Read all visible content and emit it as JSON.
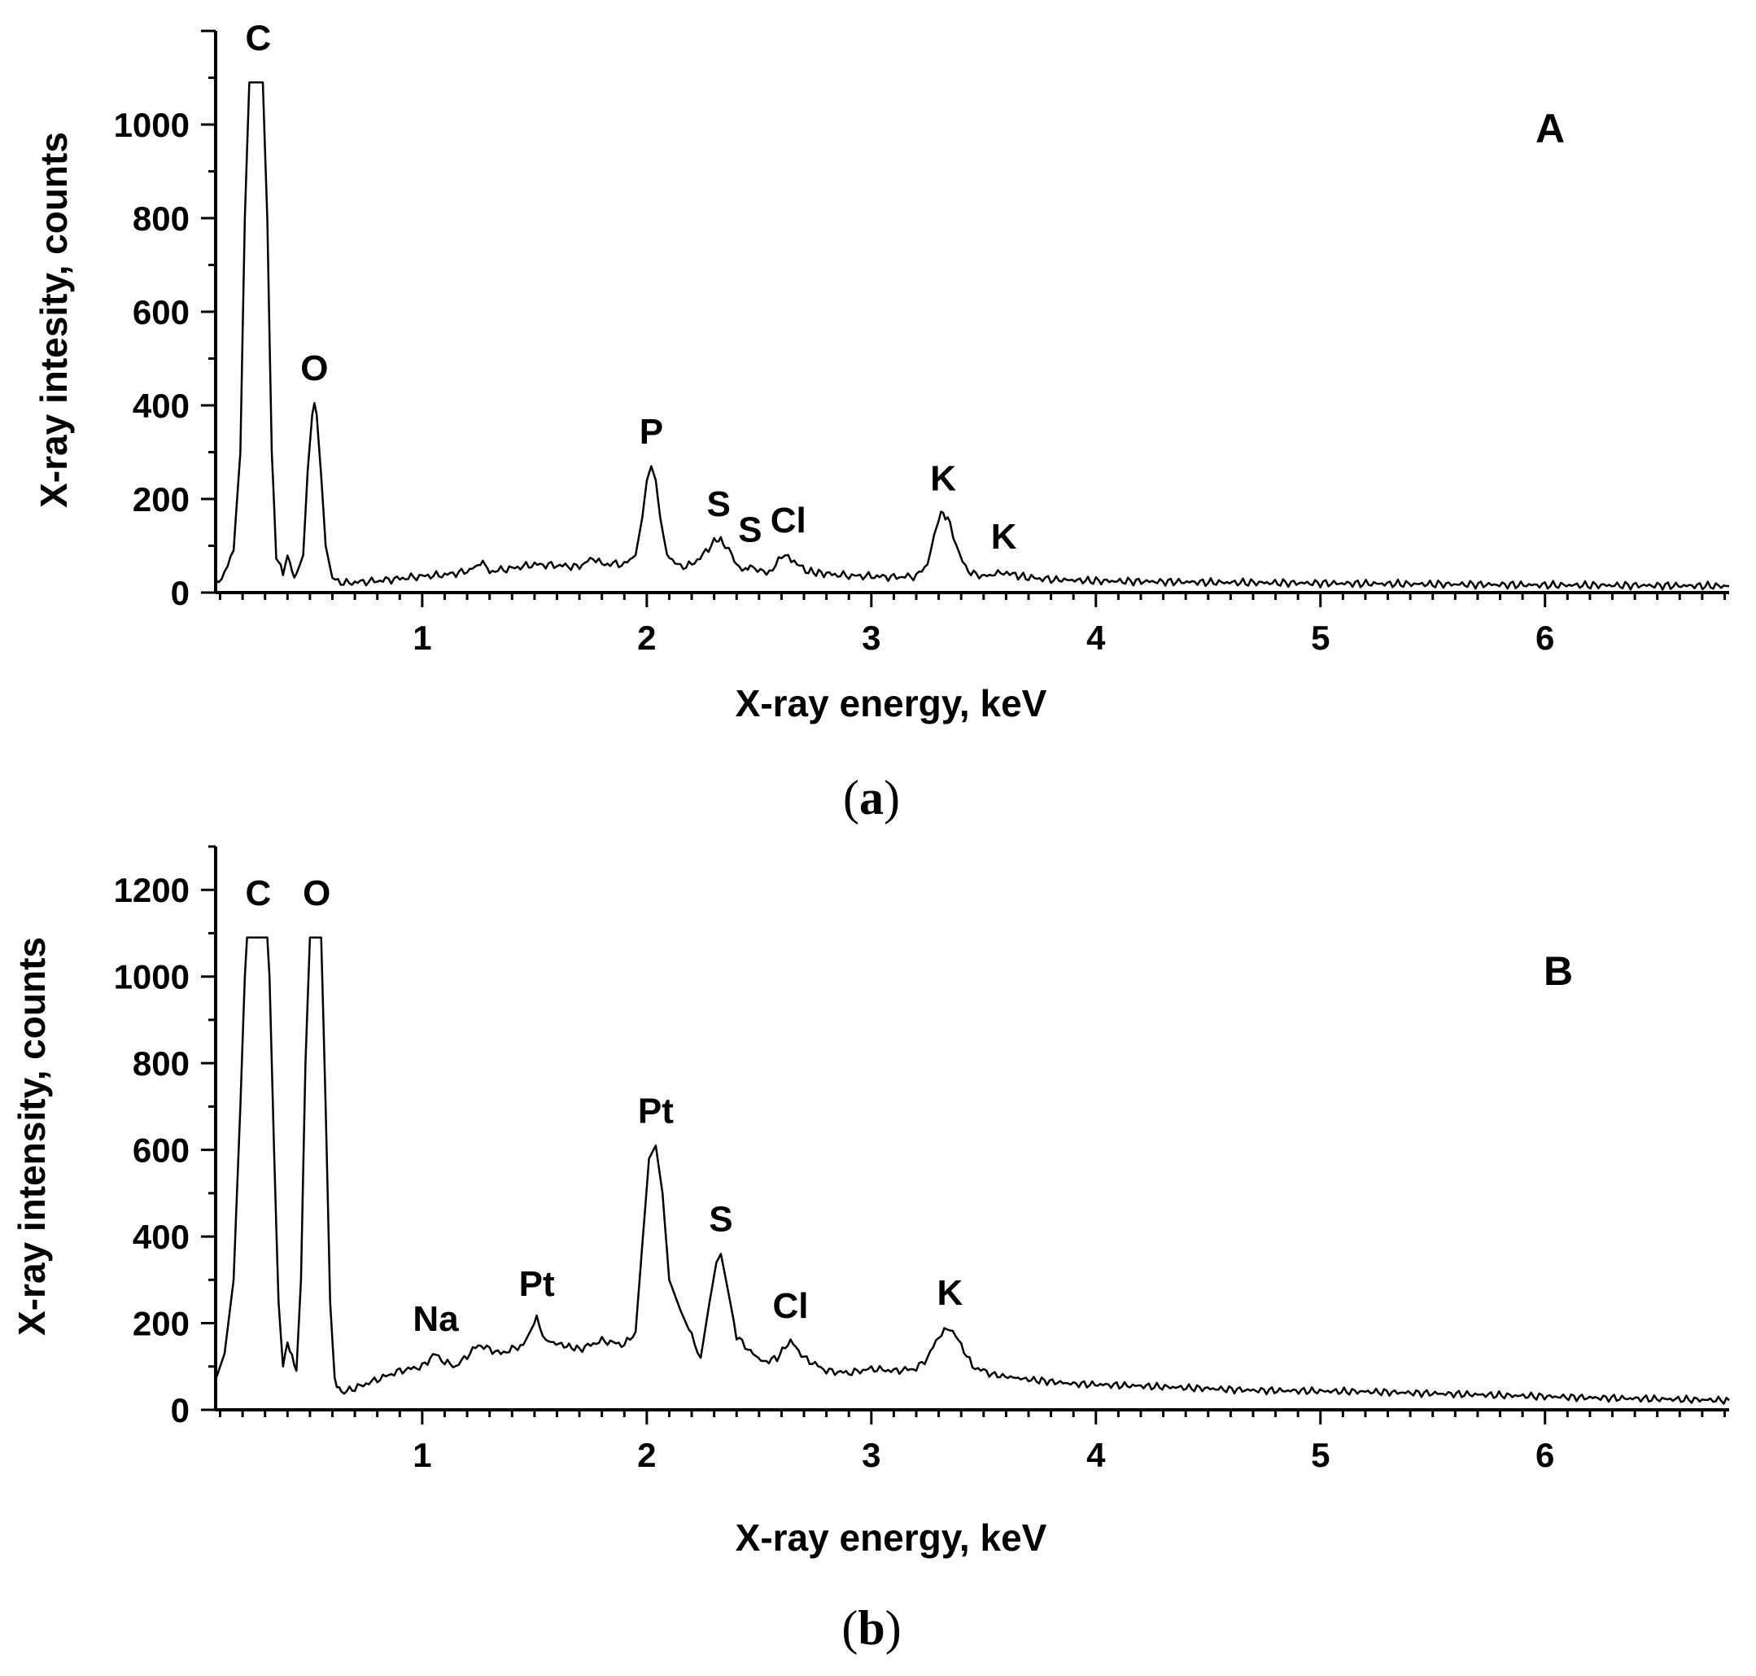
{
  "chart_data": [
    {
      "type": "line",
      "panel_label": "A",
      "caption": "a",
      "xlabel": "X-ray energy, keV",
      "ylabel": "X-ray intesity, counts",
      "xlim": [
        0.08,
        6.82
      ],
      "ylim": [
        0,
        1200
      ],
      "xticks": [
        1,
        2,
        3,
        4,
        5,
        6
      ],
      "yticks": [
        0,
        200,
        400,
        600,
        800,
        1000
      ],
      "grid": false,
      "clip_top": 1090,
      "peaks": [
        {
          "label": "C",
          "x": 0.27,
          "y": 1090
        },
        {
          "label": "O",
          "x": 0.52,
          "y": 405
        },
        {
          "label": "P",
          "x": 2.02,
          "y": 270
        },
        {
          "label": "S",
          "x": 2.32,
          "y": 115
        },
        {
          "label": "S",
          "x": 2.46,
          "y": 60
        },
        {
          "label": "Cl",
          "x": 2.63,
          "y": 80
        },
        {
          "label": "K",
          "x": 3.32,
          "y": 170
        },
        {
          "label": "K",
          "x": 3.59,
          "y": 45
        }
      ],
      "series": [
        {
          "points": [
            [
              0.08,
              22
            ],
            [
              0.12,
              40
            ],
            [
              0.16,
              90
            ],
            [
              0.19,
              300
            ],
            [
              0.21,
              800
            ],
            [
              0.23,
              1090
            ],
            [
              0.29,
              1090
            ],
            [
              0.31,
              800
            ],
            [
              0.33,
              300
            ],
            [
              0.35,
              80
            ],
            [
              0.38,
              40
            ],
            [
              0.4,
              80
            ],
            [
              0.42,
              45
            ],
            [
              0.44,
              35
            ],
            [
              0.47,
              80
            ],
            [
              0.49,
              260
            ],
            [
              0.51,
              380
            ],
            [
              0.52,
              405
            ],
            [
              0.53,
              380
            ],
            [
              0.55,
              250
            ],
            [
              0.57,
              100
            ],
            [
              0.6,
              30
            ],
            [
              0.65,
              20
            ],
            [
              0.7,
              22
            ],
            [
              0.8,
              25
            ],
            [
              0.9,
              30
            ],
            [
              1.0,
              35
            ],
            [
              1.1,
              38
            ],
            [
              1.2,
              45
            ],
            [
              1.27,
              65
            ],
            [
              1.3,
              45
            ],
            [
              1.4,
              52
            ],
            [
              1.5,
              60
            ],
            [
              1.6,
              58
            ],
            [
              1.7,
              55
            ],
            [
              1.76,
              75
            ],
            [
              1.8,
              60
            ],
            [
              1.85,
              62
            ],
            [
              1.9,
              60
            ],
            [
              1.95,
              80
            ],
            [
              1.98,
              160
            ],
            [
              2.0,
              240
            ],
            [
              2.02,
              270
            ],
            [
              2.04,
              240
            ],
            [
              2.06,
              160
            ],
            [
              2.09,
              80
            ],
            [
              2.15,
              55
            ],
            [
              2.2,
              60
            ],
            [
              2.25,
              80
            ],
            [
              2.3,
              110
            ],
            [
              2.32,
              115
            ],
            [
              2.35,
              100
            ],
            [
              2.38,
              80
            ],
            [
              2.41,
              50
            ],
            [
              2.44,
              45
            ],
            [
              2.46,
              60
            ],
            [
              2.48,
              50
            ],
            [
              2.52,
              42
            ],
            [
              2.56,
              50
            ],
            [
              2.6,
              75
            ],
            [
              2.63,
              80
            ],
            [
              2.67,
              60
            ],
            [
              2.72,
              45
            ],
            [
              2.8,
              40
            ],
            [
              2.9,
              36
            ],
            [
              3.0,
              35
            ],
            [
              3.1,
              33
            ],
            [
              3.2,
              35
            ],
            [
              3.25,
              60
            ],
            [
              3.28,
              120
            ],
            [
              3.3,
              160
            ],
            [
              3.32,
              170
            ],
            [
              3.35,
              150
            ],
            [
              3.38,
              100
            ],
            [
              3.42,
              50
            ],
            [
              3.48,
              35
            ],
            [
              3.55,
              38
            ],
            [
              3.59,
              45
            ],
            [
              3.63,
              38
            ],
            [
              3.7,
              32
            ],
            [
              3.8,
              28
            ],
            [
              4.0,
              25
            ],
            [
              4.5,
              22
            ],
            [
              5.0,
              20
            ],
            [
              5.5,
              18
            ],
            [
              6.0,
              16
            ],
            [
              6.5,
              15
            ],
            [
              6.82,
              14
            ]
          ]
        }
      ]
    },
    {
      "type": "line",
      "panel_label": "B",
      "caption": "b",
      "xlabel": "X-ray energy, keV",
      "ylabel": "X-ray intensity, counts",
      "xlim": [
        0.08,
        6.82
      ],
      "ylim": [
        0,
        1300
      ],
      "xticks": [
        1,
        2,
        3,
        4,
        5,
        6
      ],
      "yticks": [
        0,
        200,
        400,
        600,
        800,
        1000,
        1200
      ],
      "grid": false,
      "clip_top": 1090,
      "peaks": [
        {
          "label": "C",
          "x": 0.27,
          "y": 1090
        },
        {
          "label": "O",
          "x": 0.53,
          "y": 1090
        },
        {
          "label": "Na",
          "x": 1.06,
          "y": 130
        },
        {
          "label": "Pt",
          "x": 1.51,
          "y": 210
        },
        {
          "label": "Pt",
          "x": 2.04,
          "y": 610
        },
        {
          "label": "S",
          "x": 2.33,
          "y": 360
        },
        {
          "label": "Cl",
          "x": 2.64,
          "y": 160
        },
        {
          "label": "K",
          "x": 3.35,
          "y": 190
        }
      ],
      "series": [
        {
          "points": [
            [
              0.08,
              70
            ],
            [
              0.12,
              130
            ],
            [
              0.16,
              300
            ],
            [
              0.19,
              700
            ],
            [
              0.21,
              1000
            ],
            [
              0.22,
              1090
            ],
            [
              0.31,
              1090
            ],
            [
              0.32,
              1000
            ],
            [
              0.34,
              600
            ],
            [
              0.36,
              250
            ],
            [
              0.38,
              100
            ],
            [
              0.4,
              160
            ],
            [
              0.42,
              120
            ],
            [
              0.44,
              90
            ],
            [
              0.46,
              300
            ],
            [
              0.48,
              800
            ],
            [
              0.5,
              1090
            ],
            [
              0.55,
              1090
            ],
            [
              0.57,
              700
            ],
            [
              0.59,
              250
            ],
            [
              0.61,
              70
            ],
            [
              0.64,
              40
            ],
            [
              0.7,
              50
            ],
            [
              0.8,
              70
            ],
            [
              0.9,
              90
            ],
            [
              1.0,
              100
            ],
            [
              1.06,
              130
            ],
            [
              1.1,
              110
            ],
            [
              1.15,
              100
            ],
            [
              1.25,
              150
            ],
            [
              1.35,
              130
            ],
            [
              1.45,
              150
            ],
            [
              1.51,
              210
            ],
            [
              1.55,
              160
            ],
            [
              1.62,
              150
            ],
            [
              1.7,
              140
            ],
            [
              1.8,
              160
            ],
            [
              1.9,
              150
            ],
            [
              1.95,
              180
            ],
            [
              1.98,
              380
            ],
            [
              2.01,
              580
            ],
            [
              2.04,
              610
            ],
            [
              2.07,
              500
            ],
            [
              2.1,
              300
            ],
            [
              2.15,
              230
            ],
            [
              2.2,
              170
            ],
            [
              2.24,
              120
            ],
            [
              2.28,
              250
            ],
            [
              2.31,
              340
            ],
            [
              2.33,
              360
            ],
            [
              2.36,
              280
            ],
            [
              2.4,
              170
            ],
            [
              2.45,
              140
            ],
            [
              2.52,
              110
            ],
            [
              2.58,
              120
            ],
            [
              2.64,
              160
            ],
            [
              2.7,
              120
            ],
            [
              2.8,
              90
            ],
            [
              2.9,
              85
            ],
            [
              3.0,
              95
            ],
            [
              3.1,
              90
            ],
            [
              3.2,
              95
            ],
            [
              3.25,
              120
            ],
            [
              3.3,
              170
            ],
            [
              3.35,
              190
            ],
            [
              3.4,
              150
            ],
            [
              3.45,
              100
            ],
            [
              3.55,
              80
            ],
            [
              3.7,
              70
            ],
            [
              3.9,
              60
            ],
            [
              4.2,
              55
            ],
            [
              4.7,
              45
            ],
            [
              5.2,
              42
            ],
            [
              5.7,
              35
            ],
            [
              6.2,
              28
            ],
            [
              6.82,
              22
            ]
          ]
        }
      ]
    }
  ]
}
